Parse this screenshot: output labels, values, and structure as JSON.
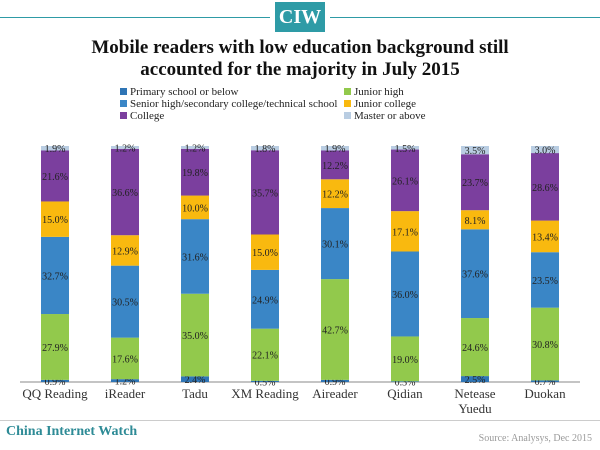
{
  "logo": {
    "text": "CIW"
  },
  "colors": {
    "brand": "#2e9ba6",
    "primary": "#2f75b5",
    "junior_high": "#92c94c",
    "senior_high": "#3a86c6",
    "junior_college": "#f9b90f",
    "college": "#7b3f9e",
    "master": "#b9cde2"
  },
  "chart_data": {
    "type": "bar",
    "stacked": true,
    "title_line1": "Mobile readers with low education background still",
    "title_line2": "accounted for the majority in July 2015",
    "categories": [
      "QQ Reading",
      "iReader",
      "Tadu",
      "XM Reading",
      "Aireader",
      "Qidian",
      "Netease Yuedu",
      "Duokan"
    ],
    "category_lines": [
      [
        "QQ Reading"
      ],
      [
        "iReader"
      ],
      [
        "Tadu"
      ],
      [
        "XM Reading"
      ],
      [
        "Aireader"
      ],
      [
        "Qidian"
      ],
      [
        "Netease",
        "Yuedu"
      ],
      [
        "Duokan"
      ]
    ],
    "ylim": [
      0,
      100
    ],
    "legend_placement": "top",
    "series": [
      {
        "key": "primary",
        "name": "Primary school or below",
        "color": "#2f75b5",
        "values": [
          0.9,
          1.2,
          2.4,
          0.5,
          0.9,
          0.3,
          2.5,
          0.7
        ]
      },
      {
        "key": "junior_high",
        "name": "Junior high",
        "color": "#92c94c",
        "values": [
          27.9,
          17.6,
          35.0,
          22.1,
          42.7,
          19.0,
          24.6,
          30.8
        ]
      },
      {
        "key": "senior_high",
        "name": "Senior high/secondary college/technical school",
        "color": "#3a86c6",
        "values": [
          32.7,
          30.5,
          31.6,
          24.9,
          30.1,
          36.0,
          37.6,
          23.5
        ]
      },
      {
        "key": "junior_college",
        "name": "Junior college",
        "color": "#f9b90f",
        "values": [
          15.0,
          12.9,
          10.0,
          15.0,
          12.2,
          17.1,
          8.1,
          13.4
        ]
      },
      {
        "key": "college",
        "name": "College",
        "color": "#7b3f9e",
        "values": [
          21.6,
          36.6,
          19.8,
          35.7,
          12.2,
          26.1,
          23.7,
          28.6
        ]
      },
      {
        "key": "master",
        "name": "Master or above",
        "color": "#b9cde2",
        "values": [
          1.9,
          1.2,
          1.2,
          1.8,
          1.9,
          1.5,
          3.5,
          3.0
        ]
      }
    ],
    "labels": {
      "primary": [
        "0.9%",
        "1.2%",
        "2.4%",
        "0.5%",
        "0.9%",
        "0.3%",
        "2.5%",
        "0.7%"
      ],
      "junior_high": [
        "27.9%",
        "17.6%",
        "35.0%",
        "22.1%",
        "42.7%",
        "19.0%",
        "24.6%",
        "30.8%"
      ],
      "senior_high": [
        "32.7%",
        "30.5%",
        "31.6%",
        "24.9%",
        "30.1%",
        "36.0%",
        "37.6%",
        "23.5%"
      ],
      "junior_college": [
        "15.0%",
        "12.9%",
        "10.0%",
        "15.0%",
        "12.2%",
        "17.1%",
        "8.1%",
        "13.4%"
      ],
      "college": [
        "21.6%",
        "36.6%",
        "19.8%",
        "35.7%",
        "12.2%",
        "26.1%",
        "23.7%",
        "28.6%"
      ],
      "master": [
        "1.9%",
        "1.2%",
        "1.2%",
        "1.8%",
        "1.9%",
        "1.5%",
        "3.5%",
        "3.0%"
      ]
    }
  },
  "footer": {
    "brand": "China Internet Watch",
    "source": "Source: Analysys, Dec 2015"
  }
}
